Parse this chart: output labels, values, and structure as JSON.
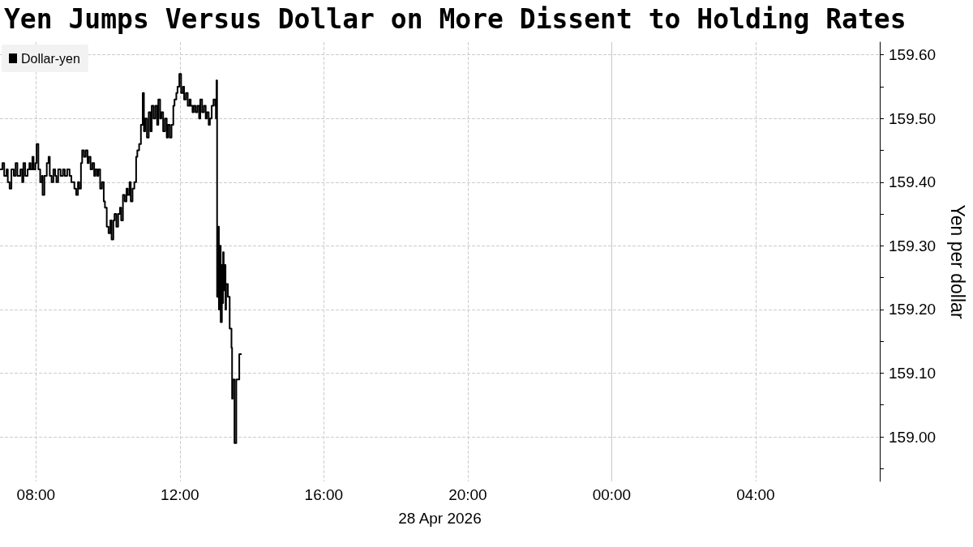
{
  "chart_data": {
    "type": "step",
    "title": "Yen Jumps Versus Dollar on More Dissent to Holding Rates",
    "xlabel": "28 Apr 2026",
    "ylabel": "Yen per dollar",
    "x": [
      "2026-04-28T07:00",
      "2026-04-28T07:04",
      "2026-04-28T07:07",
      "2026-04-28T07:11",
      "2026-04-28T07:13",
      "2026-04-28T07:16",
      "2026-04-28T07:19",
      "2026-04-28T07:23",
      "2026-04-28T07:26",
      "2026-04-28T07:29",
      "2026-04-28T07:34",
      "2026-04-28T07:37",
      "2026-04-28T07:39",
      "2026-04-28T07:42",
      "2026-04-28T07:46",
      "2026-04-28T07:49",
      "2026-04-28T07:51",
      "2026-04-28T07:54",
      "2026-04-28T07:56",
      "2026-04-28T07:59",
      "2026-04-28T08:01",
      "2026-04-28T08:04",
      "2026-04-28T08:07",
      "2026-04-28T08:10",
      "2026-04-28T08:11",
      "2026-04-28T08:14",
      "2026-04-28T08:18",
      "2026-04-28T08:21",
      "2026-04-28T08:23",
      "2026-04-28T08:26",
      "2026-04-28T08:29",
      "2026-04-28T08:32",
      "2026-04-28T08:34",
      "2026-04-28T08:37",
      "2026-04-28T08:41",
      "2026-04-28T08:45",
      "2026-04-28T08:48",
      "2026-04-28T08:52",
      "2026-04-28T08:56",
      "2026-04-28T08:59",
      "2026-04-28T09:01",
      "2026-04-28T09:04",
      "2026-04-28T09:07",
      "2026-04-28T09:10",
      "2026-04-28T09:12",
      "2026-04-28T09:15",
      "2026-04-28T09:17",
      "2026-04-28T09:20",
      "2026-04-28T09:23",
      "2026-04-28T09:26",
      "2026-04-28T09:28",
      "2026-04-28T09:31",
      "2026-04-28T09:34",
      "2026-04-28T09:37",
      "2026-04-28T09:39",
      "2026-04-28T09:42",
      "2026-04-28T09:44",
      "2026-04-28T09:47",
      "2026-04-28T09:50",
      "2026-04-28T09:53",
      "2026-04-28T09:55",
      "2026-04-28T09:58",
      "2026-04-28T10:01",
      "2026-04-28T10:04",
      "2026-04-28T10:06",
      "2026-04-28T10:09",
      "2026-04-28T10:11",
      "2026-04-28T10:14",
      "2026-04-28T10:17",
      "2026-04-28T10:20",
      "2026-04-28T10:22",
      "2026-04-28T10:25",
      "2026-04-28T10:28",
      "2026-04-28T10:31",
      "2026-04-28T10:33",
      "2026-04-28T10:36",
      "2026-04-28T10:38",
      "2026-04-28T10:41",
      "2026-04-28T10:44",
      "2026-04-28T10:47",
      "2026-04-28T10:49",
      "2026-04-28T10:52",
      "2026-04-28T10:55",
      "2026-04-28T10:58",
      "2026-04-28T11:00",
      "2026-04-28T11:02",
      "2026-04-28T11:05",
      "2026-04-28T11:08",
      "2026-04-28T11:11",
      "2026-04-28T11:13",
      "2026-04-28T11:16",
      "2026-04-28T11:19",
      "2026-04-28T11:22",
      "2026-04-28T11:24",
      "2026-04-28T11:27",
      "2026-04-28T11:29",
      "2026-04-28T11:32",
      "2026-04-28T11:35",
      "2026-04-28T11:38",
      "2026-04-28T11:40",
      "2026-04-28T11:43",
      "2026-04-28T11:46",
      "2026-04-28T11:49",
      "2026-04-28T11:51",
      "2026-04-28T11:54",
      "2026-04-28T11:56",
      "2026-04-28T11:59",
      "2026-04-28T12:02",
      "2026-04-28T12:05",
      "2026-04-28T12:07",
      "2026-04-28T12:10",
      "2026-04-28T12:13",
      "2026-04-28T12:16",
      "2026-04-28T12:18",
      "2026-04-28T12:21",
      "2026-04-28T12:23",
      "2026-04-28T12:26",
      "2026-04-28T12:29",
      "2026-04-28T12:32",
      "2026-04-28T12:34",
      "2026-04-28T12:37",
      "2026-04-28T12:40",
      "2026-04-28T12:43",
      "2026-04-28T12:45",
      "2026-04-28T12:48",
      "2026-04-28T12:50",
      "2026-04-28T12:53",
      "2026-04-28T12:56",
      "2026-04-28T12:59",
      "2026-04-28T13:00",
      "2026-04-28T13:01",
      "2026-04-28T13:02",
      "2026-04-28T13:04",
      "2026-04-28T13:05",
      "2026-04-28T13:07",
      "2026-04-28T13:08",
      "2026-04-28T13:10",
      "2026-04-28T13:11",
      "2026-04-28T13:12",
      "2026-04-28T13:13",
      "2026-04-28T13:15",
      "2026-04-28T13:16",
      "2026-04-28T13:17",
      "2026-04-28T13:20",
      "2026-04-28T13:23",
      "2026-04-28T13:26",
      "2026-04-28T13:27",
      "2026-04-28T13:28",
      "2026-04-28T13:31",
      "2026-04-28T13:34",
      "2026-04-28T13:37",
      "2026-04-28T13:39",
      "2026-04-28T13:42"
    ],
    "series": [
      {
        "name": "Dollar-yen",
        "color": "#000000",
        "values": [
          159.42,
          159.43,
          159.41,
          159.42,
          159.4,
          159.39,
          159.42,
          159.41,
          159.43,
          159.41,
          159.42,
          159.4,
          159.43,
          159.41,
          159.42,
          159.43,
          159.42,
          159.44,
          159.42,
          159.43,
          159.46,
          159.42,
          159.4,
          159.41,
          159.38,
          159.41,
          159.43,
          159.44,
          159.41,
          159.4,
          159.42,
          159.41,
          159.4,
          159.42,
          159.41,
          159.42,
          159.41,
          159.42,
          159.41,
          159.4,
          159.4,
          159.39,
          159.38,
          159.4,
          159.39,
          159.43,
          159.45,
          159.44,
          159.45,
          159.43,
          159.44,
          159.42,
          159.43,
          159.41,
          159.42,
          159.41,
          159.42,
          159.39,
          159.4,
          159.37,
          159.36,
          159.33,
          159.32,
          159.34,
          159.31,
          159.34,
          159.35,
          159.33,
          159.35,
          159.36,
          159.34,
          159.38,
          159.37,
          159.39,
          159.38,
          159.4,
          159.37,
          159.39,
          159.4,
          159.44,
          159.45,
          159.46,
          159.49,
          159.54,
          159.48,
          159.5,
          159.47,
          159.51,
          159.48,
          159.52,
          159.5,
          159.52,
          159.49,
          159.53,
          159.5,
          159.51,
          159.48,
          159.5,
          159.47,
          159.49,
          159.47,
          159.49,
          159.52,
          159.53,
          159.54,
          159.55,
          159.57,
          159.54,
          159.55,
          159.53,
          159.54,
          159.52,
          159.53,
          159.52,
          159.51,
          159.52,
          159.51,
          159.52,
          159.5,
          159.53,
          159.51,
          159.52,
          159.5,
          159.51,
          159.49,
          159.5,
          159.52,
          159.53,
          159.52,
          159.5,
          159.56,
          159.22,
          159.33,
          159.2,
          159.3,
          159.18,
          159.27,
          159.21,
          159.29,
          159.23,
          159.27,
          159.2,
          159.24,
          159.22,
          159.17,
          159.14,
          159.06,
          159.09,
          158.99,
          159.09,
          159.09,
          159.13,
          159.13
        ]
      }
    ],
    "xlim": [
      "2026-04-28T07:00",
      "2026-04-29T07:27"
    ],
    "xticks": [
      {
        "value": "2026-04-28T08:00",
        "label": "08:00"
      },
      {
        "value": "2026-04-28T12:00",
        "label": "12:00"
      },
      {
        "value": "2026-04-28T16:00",
        "label": "16:00"
      },
      {
        "value": "2026-04-28T20:00",
        "label": "20:00"
      },
      {
        "value": "2026-04-29T00:00",
        "label": "00:00"
      },
      {
        "value": "2026-04-29T04:00",
        "label": "04:00"
      }
    ],
    "ylim": [
      158.93,
      159.62
    ],
    "yticks": [
      {
        "value": 158.95,
        "label": null
      },
      {
        "value": 159,
        "label": "159.00"
      },
      {
        "value": 159.05,
        "label": null
      },
      {
        "value": 159.1,
        "label": "159.10"
      },
      {
        "value": 159.15,
        "label": null
      },
      {
        "value": 159.2,
        "label": "159.20"
      },
      {
        "value": 159.25,
        "label": null
      },
      {
        "value": 159.3,
        "label": "159.30"
      },
      {
        "value": 159.35,
        "label": null
      },
      {
        "value": 159.4,
        "label": "159.40"
      },
      {
        "value": 159.45,
        "label": null
      },
      {
        "value": 159.5,
        "label": "159.50"
      },
      {
        "value": 159.55,
        "label": null
      },
      {
        "value": 159.6,
        "label": "159.60"
      }
    ],
    "ref_lines": [
      {
        "axis": "x",
        "value": "2026-04-29T00:00",
        "color": "#c8c8c8"
      }
    ],
    "grid": true,
    "legend": "top left",
    "marker": "none"
  }
}
